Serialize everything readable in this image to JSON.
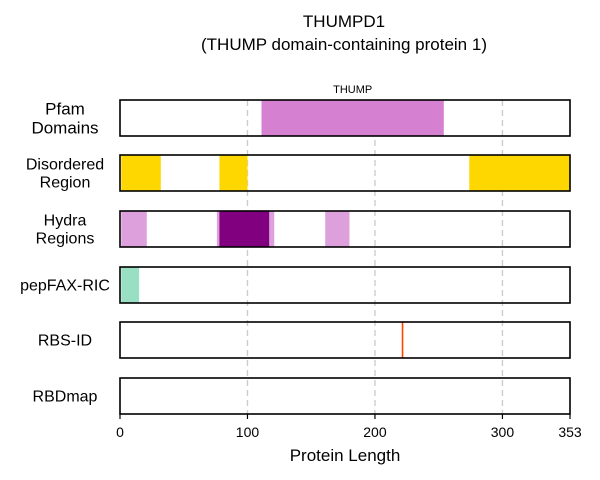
{
  "figure": {
    "title_line1": "THUMPD1",
    "title_line2": "(THUMP domain-containing protein 1)"
  },
  "chart_data": {
    "type": "track",
    "title": "THUMPD1",
    "subtitle": "(THUMP domain-containing protein 1)",
    "xlabel": "Protein Length",
    "xlim": [
      0,
      353
    ],
    "xticks": [
      0,
      100,
      200,
      300,
      353
    ],
    "grid": "vertical dashed at 100, 200, 300",
    "tracks": [
      {
        "label_lines": [
          "Pfam",
          "Domains"
        ],
        "features": [
          {
            "start": 111,
            "end": 254,
            "color": "#d580d1",
            "label": "THUMP"
          }
        ]
      },
      {
        "label_lines": [
          "Disordered",
          "Region"
        ],
        "features": [
          {
            "start": 1,
            "end": 32,
            "color": "#ffd700"
          },
          {
            "start": 78,
            "end": 100,
            "color": "#ffd700"
          },
          {
            "start": 274,
            "end": 353,
            "color": "#ffd700"
          }
        ]
      },
      {
        "label_lines": [
          "Hydra",
          "Regions"
        ],
        "features": [
          {
            "start": 1,
            "end": 21,
            "color": "#dda0dd"
          },
          {
            "start": 76,
            "end": 80,
            "color": "#dda0dd"
          },
          {
            "start": 115,
            "end": 121,
            "color": "#dda0dd"
          },
          {
            "start": 161,
            "end": 180,
            "color": "#dda0dd"
          },
          {
            "start": 78,
            "end": 117,
            "color": "#800080"
          }
        ]
      },
      {
        "label_lines": [
          "pepFAX-RIC"
        ],
        "features": [
          {
            "start": 1,
            "end": 15,
            "color": "#99dfc3"
          }
        ]
      },
      {
        "label_lines": [
          "RBS-ID"
        ],
        "features": [
          {
            "start": 221,
            "end": 222,
            "color": "#ff4500"
          }
        ]
      },
      {
        "label_lines": [
          "RBDmap"
        ],
        "features": []
      }
    ]
  }
}
